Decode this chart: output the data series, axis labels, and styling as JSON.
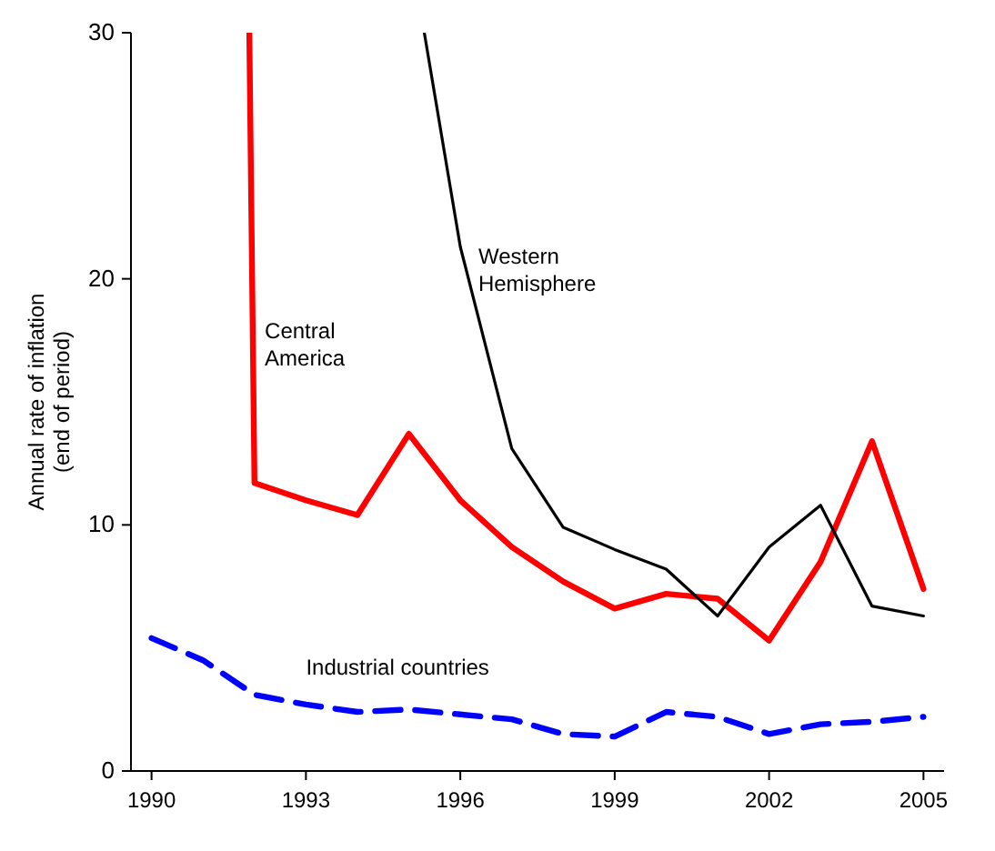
{
  "chart_data": {
    "type": "line",
    "ylabel": "Annual rate of inflation\n(end of period)",
    "xlim": [
      1989.6,
      2005.4
    ],
    "xticks": [
      1990,
      1993,
      1996,
      1999,
      2002,
      2005
    ],
    "ylim": [
      0,
      30
    ],
    "yticks": [
      0,
      10,
      20,
      30
    ],
    "grid": false,
    "legend": false,
    "marker": "none",
    "series": [
      {
        "name": "Central\nAmerica",
        "color": "#ff0000",
        "line_style": "solid",
        "x": [
          1991.9,
          1992,
          1993,
          1994,
          1995,
          1996,
          1997,
          1998,
          1999,
          2000,
          2001,
          2002,
          2003,
          2004,
          2005
        ],
        "values": [
          30,
          11.7,
          11.0,
          10.4,
          13.7,
          11.0,
          9.1,
          7.7,
          6.6,
          7.2,
          7.0,
          5.3,
          8.5,
          13.4,
          7.4
        ]
      },
      {
        "name": "Western\nHemisphere",
        "color": "#000000",
        "line_style": "solid",
        "x": [
          1995.3,
          1996,
          1997,
          1998,
          1999,
          2000,
          2001,
          2002,
          2003,
          2004,
          2005
        ],
        "values": [
          30,
          21.3,
          13.1,
          9.9,
          9.0,
          8.2,
          6.3,
          9.1,
          10.8,
          6.7,
          6.3
        ]
      },
      {
        "name": "Industrial countries",
        "color": "#0000ff",
        "line_style": "dashed",
        "x": [
          1990,
          1991,
          1992,
          1993,
          1994,
          1995,
          1996,
          1997,
          1998,
          1999,
          2000,
          2001,
          2002,
          2003,
          2004,
          2005
        ],
        "values": [
          5.4,
          4.5,
          3.1,
          2.7,
          2.4,
          2.5,
          2.3,
          2.1,
          1.5,
          1.4,
          2.4,
          2.2,
          1.5,
          1.9,
          2.0,
          2.2
        ]
      }
    ]
  }
}
